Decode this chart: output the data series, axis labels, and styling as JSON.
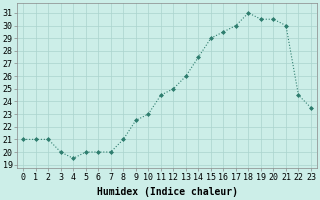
{
  "x": [
    0,
    1,
    2,
    3,
    4,
    5,
    6,
    7,
    8,
    9,
    10,
    11,
    12,
    13,
    14,
    15,
    16,
    17,
    18,
    19,
    20,
    21,
    22,
    23
  ],
  "y": [
    21.0,
    21.0,
    21.0,
    20.0,
    19.5,
    20.0,
    20.0,
    20.0,
    21.0,
    22.5,
    23.0,
    24.5,
    25.0,
    26.0,
    27.5,
    29.0,
    29.5,
    30.0,
    31.0,
    30.5,
    30.5,
    30.0,
    24.5,
    23.5
  ],
  "line_color": "#2e7d6e",
  "marker": "D",
  "marker_size": 2.0,
  "bg_color": "#cceee8",
  "grid_color": "#aad4ce",
  "xlabel": "Humidex (Indice chaleur)",
  "ylabel_ticks": [
    19,
    20,
    21,
    22,
    23,
    24,
    25,
    26,
    27,
    28,
    29,
    30,
    31
  ],
  "ylim": [
    18.7,
    31.8
  ],
  "xlim": [
    -0.5,
    23.5
  ],
  "figsize": [
    3.2,
    2.0
  ],
  "dpi": 100,
  "tick_fontsize": 6.0,
  "xlabel_fontsize": 7.0
}
